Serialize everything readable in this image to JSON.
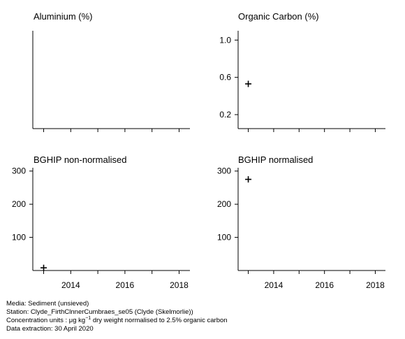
{
  "chart_data": [
    {
      "type": "scatter",
      "title": "Aluminium (%)",
      "xlim": [
        2012.6,
        2018.4
      ],
      "ylim": null,
      "yticks": [],
      "xticks": [
        2013,
        2014,
        2015,
        2016,
        2017,
        2018
      ],
      "xtick_labels": [],
      "points": []
    },
    {
      "type": "scatter",
      "title": "Organic Carbon (%)",
      "xlim": [
        2012.6,
        2018.4
      ],
      "ylim": [
        0.05,
        1.1
      ],
      "yticks": [
        0.2,
        0.6,
        1.0
      ],
      "ytick_labels": [
        "0.2",
        "0.6",
        "1.0"
      ],
      "xticks": [
        2013,
        2014,
        2015,
        2016,
        2017,
        2018
      ],
      "xtick_labels": [],
      "points": [
        {
          "x": 2013,
          "y": 0.53
        }
      ]
    },
    {
      "type": "scatter",
      "title": "BGHIP non-normalised",
      "xlim": [
        2012.6,
        2018.4
      ],
      "ylim": [
        0,
        310
      ],
      "yticks": [
        100,
        200,
        300
      ],
      "ytick_labels": [
        "100",
        "200",
        "300"
      ],
      "xticks": [
        2013,
        2014,
        2015,
        2016,
        2017,
        2018
      ],
      "xtick_labels": [
        "2014",
        "2016",
        "2018"
      ],
      "xtick_label_values": [
        2014,
        2016,
        2018
      ],
      "points": [
        {
          "x": 2013,
          "y": 8
        }
      ]
    },
    {
      "type": "scatter",
      "title": "BGHIP normalised",
      "xlim": [
        2012.6,
        2018.4
      ],
      "ylim": [
        0,
        310
      ],
      "yticks": [
        100,
        200,
        300
      ],
      "ytick_labels": [
        "100",
        "200",
        "300"
      ],
      "xticks": [
        2013,
        2014,
        2015,
        2016,
        2017,
        2018
      ],
      "xtick_labels": [
        "2014",
        "2016",
        "2018"
      ],
      "xtick_label_values": [
        2014,
        2016,
        2018
      ],
      "points": [
        {
          "x": 2013,
          "y": 275
        }
      ]
    }
  ],
  "footer": {
    "media": "Media: Sediment (unsieved)",
    "station": "Station: Clyde_FirthClnnerCumbraes_se05 (Clyde (Skelmorlie))",
    "units_prefix": "Concentration units : μg kg",
    "units_exp": "−1",
    "units_suffix": " dry weight normalised to 2.5% organic carbon",
    "extraction": "Data extraction: 30 April 2020"
  }
}
